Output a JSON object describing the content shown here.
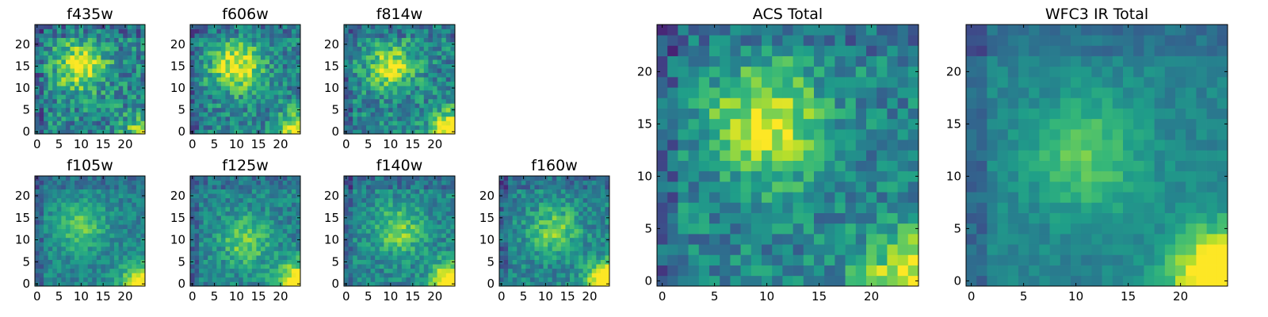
{
  "chart_data": {
    "type": "heatmap",
    "colormap": "viridis",
    "grid": "off",
    "panels": [
      {
        "title": "f435w",
        "nx": 25,
        "ny": 25,
        "x_ticks": [
          0,
          5,
          10,
          15,
          20
        ],
        "y_ticks": [
          0,
          5,
          10,
          15,
          20
        ],
        "blob": [
          10,
          15,
          0.55
        ],
        "corner": 0.35,
        "noise": 0.45
      },
      {
        "title": "f606w",
        "nx": 25,
        "ny": 25,
        "x_ticks": [
          0,
          5,
          10,
          15,
          20
        ],
        "y_ticks": [
          0,
          5,
          10,
          15,
          20
        ],
        "blob": [
          10,
          15,
          0.55
        ],
        "corner": 0.5,
        "noise": 0.4
      },
      {
        "title": "f814w",
        "nx": 25,
        "ny": 25,
        "x_ticks": [
          0,
          5,
          10,
          15,
          20
        ],
        "y_ticks": [
          0,
          5,
          10,
          15,
          20
        ],
        "blob": [
          10,
          15,
          0.45
        ],
        "corner": 0.7,
        "noise": 0.4
      },
      {
        "title": "f105w",
        "nx": 25,
        "ny": 25,
        "x_ticks": [
          0,
          5,
          10,
          15,
          20
        ],
        "y_ticks": [
          0,
          5,
          10,
          15,
          20
        ],
        "blob": [
          10,
          13,
          0.3
        ],
        "corner": 0.6,
        "noise": 0.25
      },
      {
        "title": "f125w",
        "nx": 25,
        "ny": 25,
        "x_ticks": [
          0,
          5,
          10,
          15,
          20
        ],
        "y_ticks": [
          0,
          5,
          10,
          15,
          20
        ],
        "blob": [
          12,
          10,
          0.35
        ],
        "corner": 0.7,
        "noise": 0.3
      },
      {
        "title": "f140w",
        "nx": 25,
        "ny": 25,
        "x_ticks": [
          0,
          5,
          10,
          15,
          20
        ],
        "y_ticks": [
          0,
          5,
          10,
          15,
          20
        ],
        "blob": [
          12,
          12,
          0.35
        ],
        "corner": 0.8,
        "noise": 0.3
      },
      {
        "title": "f160w",
        "nx": 25,
        "ny": 25,
        "x_ticks": [
          0,
          5,
          10,
          15,
          20
        ],
        "y_ticks": [
          0,
          5,
          10,
          15,
          20
        ],
        "blob": [
          12,
          12,
          0.35
        ],
        "corner": 0.8,
        "noise": 0.3
      },
      {
        "title": "ACS Total",
        "nx": 25,
        "ny": 25,
        "x_ticks": [
          0,
          5,
          10,
          15,
          20
        ],
        "y_ticks": [
          0,
          5,
          10,
          15,
          20
        ],
        "blob": [
          10,
          15,
          0.5
        ],
        "corner": 0.55,
        "noise": 0.35
      },
      {
        "title": "WFC3 IR Total",
        "nx": 25,
        "ny": 25,
        "x_ticks": [
          0,
          5,
          10,
          15,
          20
        ],
        "y_ticks": [
          0,
          5,
          10,
          15,
          20
        ],
        "blob": [
          11,
          12,
          0.3
        ],
        "corner": 0.85,
        "noise": 0.15
      }
    ]
  }
}
